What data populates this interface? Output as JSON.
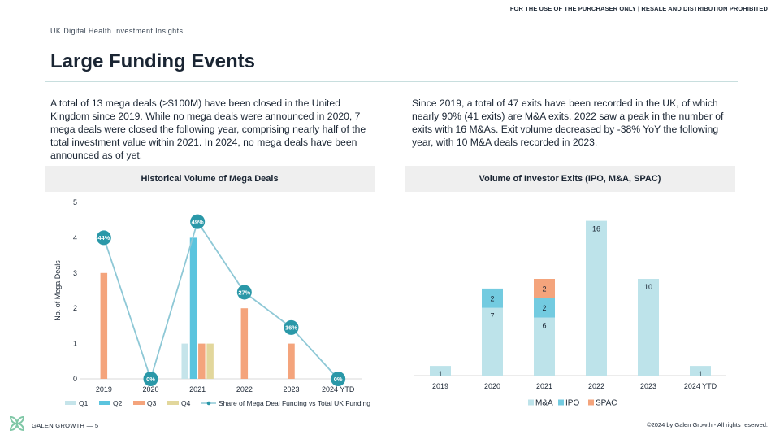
{
  "header": {
    "disclaimer": "FOR THE USE OF THE PURCHASER ONLY | RESALE AND DISTRIBUTION PROHIBITED",
    "eyebrow": "UK Digital Health Investment Insights",
    "title": "Large Funding Events"
  },
  "text": {
    "left_paragraph": "A total of 13 mega deals (≥$100M) have been closed in the United Kingdom since 2019. While no mega deals were announced in 2020, 7 mega deals were closed the following year, comprising nearly half of the total investment value within 2021. In 2024, no mega deals have been announced as of yet.",
    "right_paragraph": "Since 2019, a total of 47 exits have been recorded in the UK, of which nearly 90% (41 exits) are M&A exits. 2022 saw a peak in the number of exits with 16 M&As. Exit volume decreased by -38% YoY the following year, with 10 M&A deals recorded in 2023."
  },
  "footer": {
    "brand": "GALEN GROWTH",
    "page_sep": "—",
    "page": "5",
    "copyright": "©2024 by Galen Growth  - All rights reserved."
  },
  "colors": {
    "q1": "#c5e4ea",
    "q2": "#5bc4de",
    "q3": "#f4a47c",
    "q4": "#e2d79c",
    "line": "#8ec8d6",
    "marker": "#2a98a8",
    "mna": "#bde3ea",
    "ipo": "#73cbe0",
    "spac": "#f4a47c"
  },
  "chart_data": [
    {
      "type": "bar",
      "title": "Historical Volume of Mega Deals",
      "categories": [
        "2019",
        "2020",
        "2021",
        "2022",
        "2023",
        "2024 YTD"
      ],
      "ylabel": "No. of Mega Deals",
      "ylim": [
        0,
        5
      ],
      "yticks": [
        0,
        1,
        2,
        3,
        4,
        5
      ],
      "series": [
        {
          "name": "Q1",
          "values": [
            0,
            0,
            1,
            0,
            0,
            0
          ]
        },
        {
          "name": "Q2",
          "values": [
            0,
            0,
            4,
            0,
            0,
            0
          ]
        },
        {
          "name": "Q3",
          "values": [
            3,
            0,
            1,
            2,
            1,
            0
          ]
        },
        {
          "name": "Q4",
          "values": [
            0,
            0,
            1,
            0,
            0,
            0
          ]
        }
      ],
      "line_series": {
        "name": "Share of Mega Deal Funding vs Total UK Funding",
        "values": [
          44,
          0,
          49,
          27,
          16,
          0
        ],
        "labels": [
          "44%",
          "0%",
          "49%",
          "27%",
          "16%",
          "0%"
        ],
        "ylim": [
          0,
          55
        ]
      },
      "legend": "bottom"
    },
    {
      "type": "bar",
      "stacked": true,
      "title": "Volume of Investor Exits (IPO, M&A, SPAC)",
      "categories": [
        "2019",
        "2020",
        "2021",
        "2022",
        "2023",
        "2024 YTD"
      ],
      "series": [
        {
          "name": "M&A",
          "values": [
            1,
            7,
            6,
            16,
            10,
            1
          ]
        },
        {
          "name": "IPO",
          "values": [
            0,
            2,
            2,
            0,
            0,
            0
          ]
        },
        {
          "name": "SPAC",
          "values": [
            0,
            0,
            2,
            0,
            0,
            0
          ]
        }
      ],
      "legend": "bottom"
    }
  ]
}
